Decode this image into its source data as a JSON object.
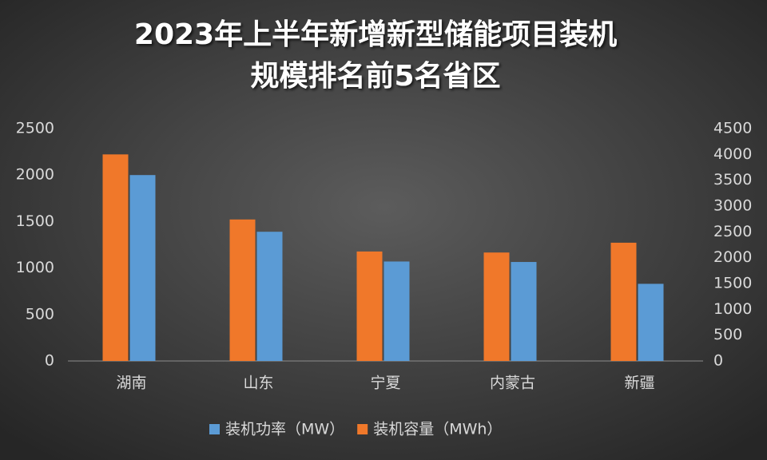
{
  "chart_data": {
    "type": "bar",
    "title": [
      "2023年上半年新增新型储能项目装机",
      "规模排名前5名省区"
    ],
    "categories": [
      "湖南",
      "山东",
      "宁夏",
      "内蒙古",
      "新疆"
    ],
    "series": [
      {
        "name": "装机功率（MW）",
        "color": "#5b9bd5",
        "axis": "y",
        "values": [
          2000,
          1390,
          1070,
          1065,
          830
        ]
      },
      {
        "name": "装机容量（MWh）",
        "color": "#f0782a",
        "axis": "y2",
        "values": [
          4000,
          2740,
          2120,
          2100,
          2290
        ]
      }
    ],
    "ylim": [
      0,
      2500
    ],
    "yticks": [
      0,
      500,
      1000,
      1500,
      2000,
      2500
    ],
    "y2lim": [
      0,
      4500
    ],
    "y2ticks": [
      0,
      500,
      1000,
      1500,
      2000,
      2500,
      3000,
      3500,
      4000,
      4500
    ],
    "grid": false,
    "legend": "bottom"
  }
}
